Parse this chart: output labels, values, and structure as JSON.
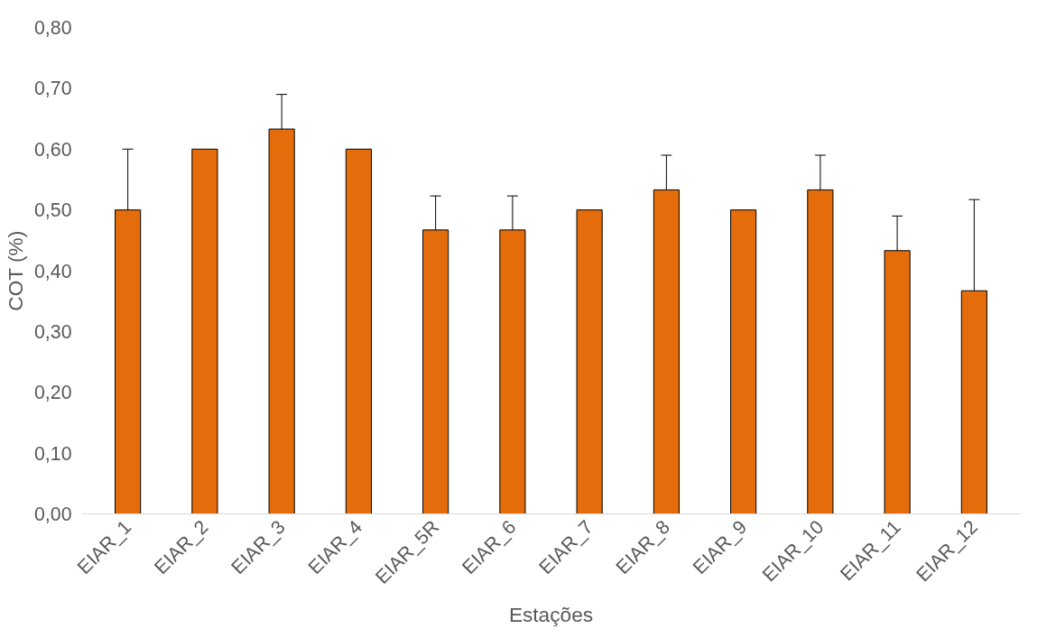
{
  "chart_data": {
    "type": "bar",
    "xlabel": "Estações",
    "ylabel": "COT (%)",
    "categories": [
      "EIAR_1",
      "EIAR_2",
      "EIAR_3",
      "EIAR_4",
      "EIAR_5R",
      "EIAR_6",
      "EIAR_7",
      "EIAR_8",
      "EIAR_9",
      "EIAR_10",
      "EIAR_11",
      "EIAR_12"
    ],
    "values": [
      0.5,
      0.6,
      0.633,
      0.6,
      0.467,
      0.467,
      0.5,
      0.533,
      0.5,
      0.533,
      0.433,
      0.367
    ],
    "errors": [
      [
        0.5,
        0.6
      ],
      null,
      [
        0.633,
        0.69
      ],
      null,
      [
        0.467,
        0.523
      ],
      [
        0.467,
        0.523
      ],
      null,
      [
        0.533,
        0.59
      ],
      null,
      [
        0.533,
        0.59
      ],
      [
        0.433,
        0.49
      ],
      [
        0.367,
        0.517
      ]
    ],
    "color": "#e46c0a",
    "ylim": [
      0,
      0.8
    ],
    "yticks": [
      {
        "value": 0,
        "label": "0,00"
      },
      {
        "value": 0.1,
        "label": "0,10"
      },
      {
        "value": 0.2,
        "label": "0,20"
      },
      {
        "value": 0.3,
        "label": "0,30"
      },
      {
        "value": 0.4,
        "label": "0,40"
      },
      {
        "value": 0.5,
        "label": "0,50"
      },
      {
        "value": 0.6,
        "label": "0,60"
      },
      {
        "value": 0.7,
        "label": "0,70"
      },
      {
        "value": 0.8,
        "label": "0,80"
      }
    ],
    "grid": false
  }
}
